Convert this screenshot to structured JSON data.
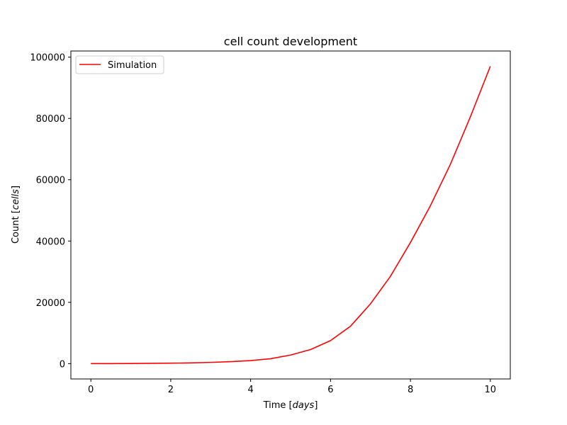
{
  "chart_data": {
    "type": "line",
    "title": "cell count development",
    "xlabel": {
      "text": "Time ",
      "unit": "days"
    },
    "ylabel": {
      "text": "Count ",
      "unit": "cells"
    },
    "xlim": [
      -0.5,
      10.5
    ],
    "ylim": [
      -5000,
      102000
    ],
    "xticks": [
      0,
      2,
      4,
      6,
      8,
      10
    ],
    "yticks": [
      0,
      20000,
      40000,
      60000,
      80000,
      100000
    ],
    "grid": false,
    "legend_position": "top-left",
    "series": [
      {
        "name": "Simulation",
        "color": "#ff0000",
        "x": [
          0,
          0.5,
          1,
          1.5,
          2,
          2.5,
          3,
          3.5,
          4,
          4.5,
          5,
          5.5,
          6,
          6.5,
          7,
          7.5,
          8,
          8.5,
          9,
          9.5,
          10
        ],
        "y": [
          0,
          20,
          50,
          100,
          150,
          250,
          400,
          650,
          1000,
          1600,
          2800,
          4600,
          7500,
          12200,
          19500,
          28500,
          39500,
          51500,
          65000,
          80500,
          97000
        ]
      }
    ]
  }
}
